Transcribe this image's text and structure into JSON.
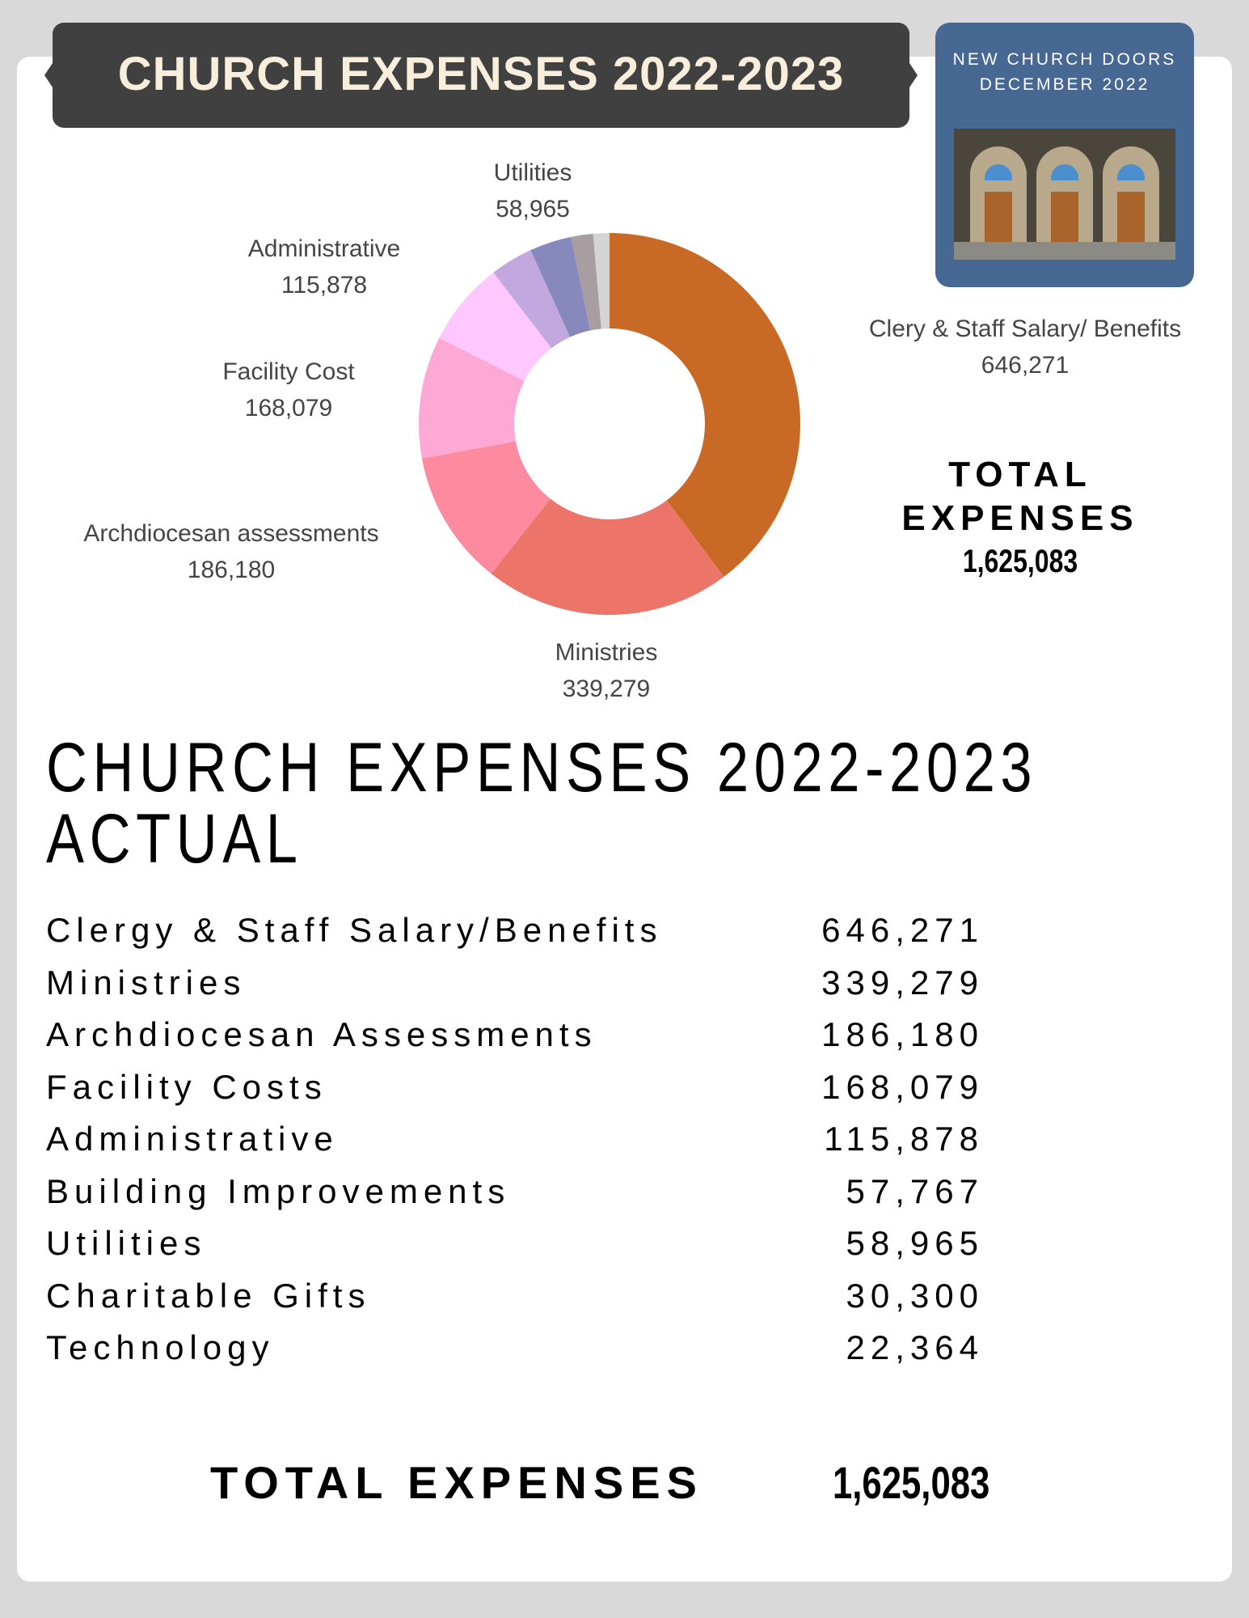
{
  "banner": {
    "title": "CHURCH EXPENSES 2022-2023"
  },
  "photo_card": {
    "line1": "NEW CHURCH DOORS",
    "line2": "DECEMBER 2022"
  },
  "chart_data": {
    "type": "pie",
    "donut": true,
    "categories": [
      "Clery & Staff Salary/ Benefits",
      "Ministries",
      "Archdiocesan assessments",
      "Facility Cost",
      "Administrative",
      "Utilities",
      "Building Improvements",
      "Charitable Gifts",
      "Technology"
    ],
    "values": [
      646271,
      339279,
      186180,
      168079,
      115878,
      58965,
      57767,
      30300,
      22364
    ],
    "colors": [
      "#c86a26",
      "#ec7468",
      "#fd8a9e",
      "#fda8d5",
      "#fec8fe",
      "#c2a8de",
      "#8789bd",
      "#a89ea2",
      "#d4d4d4"
    ],
    "labels": [
      {
        "name": "Clery & Staff Salary/ Benefits",
        "value": "646,271"
      },
      {
        "name": "Ministries",
        "value": "339,279"
      },
      {
        "name": "Archdiocesan assessments",
        "value": "186,180"
      },
      {
        "name": "Facility Cost",
        "value": "168,079"
      },
      {
        "name": "Administrative",
        "value": "115,878"
      },
      {
        "name": "Utilities",
        "value": "58,965"
      }
    ]
  },
  "side_total": {
    "line1": "TOTAL",
    "line2": "EXPENSES",
    "value": "1,625,083"
  },
  "heading": {
    "line1": "CHURCH EXPENSES 2022-2023",
    "line2": "ACTUAL"
  },
  "table": [
    {
      "label": "Clergy & Staff Salary/Benefits",
      "value": "646,271"
    },
    {
      "label": "Ministries",
      "value": "339,279"
    },
    {
      "label": "Archdiocesan Assessments",
      "value": "186,180"
    },
    {
      "label": "Facility Costs",
      "value": "168,079"
    },
    {
      "label": "Administrative",
      "value": "115,878"
    },
    {
      "label": "Building Improvements",
      "value": "57,767"
    },
    {
      "label": "Utilities",
      "value": "58,965"
    },
    {
      "label": "Charitable Gifts",
      "value": "30,300"
    },
    {
      "label": "Technology",
      "value": "22,364"
    }
  ],
  "grand_total": {
    "label": "TOTAL EXPENSES",
    "value": "1,625,083"
  }
}
